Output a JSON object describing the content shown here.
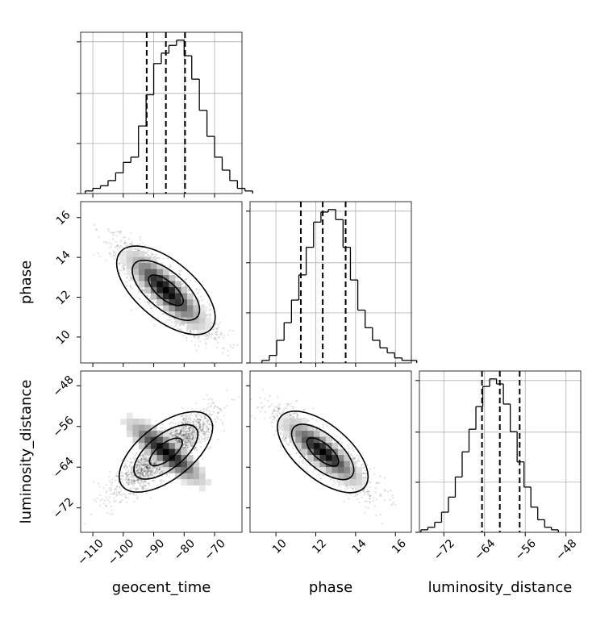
{
  "chart_data": {
    "type": "corner",
    "parameters": [
      "geocent_time",
      "phase",
      "luminosity_distance"
    ],
    "axis_labels": {
      "geocent_time": "geocent_time",
      "phase": "phase",
      "luminosity_distance": "luminosity_distance"
    },
    "ticks": {
      "geocent_time": {
        "values": [
          -110,
          -100,
          -90,
          -80,
          -70
        ],
        "labels": [
          "−110",
          "−100",
          "−90",
          "−80",
          "−70"
        ]
      },
      "phase": {
        "values": [
          10,
          12,
          14,
          16
        ],
        "labels": [
          "10",
          "12",
          "14",
          "16"
        ]
      },
      "luminosity_distance": {
        "values": [
          -72,
          -64,
          -56,
          -48
        ],
        "labels": [
          "−72",
          "−64",
          "−56",
          "−48"
        ]
      }
    },
    "ranges": {
      "geocent_time": [
        -114,
        -61
      ],
      "phase": [
        8.7,
        16.8
      ],
      "luminosity_distance": [
        -76.8,
        -45.1
      ]
    },
    "grid": true,
    "quantile_lines": {
      "geocent_time": [
        -92.3,
        -86.0,
        -79.7
      ],
      "phase": [
        11.25,
        12.35,
        13.5
      ],
      "luminosity_distance": [
        -64.5,
        -61.0,
        -57.1
      ]
    },
    "histograms": {
      "geocent_time": {
        "bin_start": -112.5,
        "bin_width": 2.5,
        "counts": [
          1,
          2,
          3,
          5,
          8,
          12,
          14,
          26,
          38,
          50,
          54,
          57,
          59,
          53,
          44,
          32,
          22,
          14,
          9,
          5,
          2,
          1
        ]
      },
      "phase": {
        "bin_start": 9.3,
        "bin_width": 0.37,
        "counts": [
          1,
          3,
          9,
          16,
          25,
          35,
          46,
          56,
          60,
          61,
          57,
          46,
          33,
          21,
          14,
          9,
          6,
          4,
          2,
          1,
          1
        ]
      },
      "luminosity_distance": {
        "bin_start": -76.5,
        "bin_width": 1.35,
        "counts": [
          1,
          2,
          4,
          8,
          14,
          22,
          32,
          41,
          50,
          58,
          61,
          59,
          51,
          40,
          28,
          18,
          10,
          5,
          2,
          1
        ]
      }
    },
    "pairs": [
      {
        "x": "geocent_time",
        "y": "phase",
        "mean": [
          -86,
          12.35
        ],
        "sd": [
          7,
          1.05
        ],
        "corr": -0.85
      },
      {
        "x": "geocent_time",
        "y": "luminosity_distance",
        "mean": [
          -86,
          -61
        ],
        "sd": [
          7,
          3.5
        ],
        "corr": 0.85
      },
      {
        "x": "phase",
        "y": "luminosity_distance",
        "mean": [
          12.35,
          -61
        ],
        "sd": [
          1.05,
          3.5
        ],
        "corr": -0.85
      }
    ]
  }
}
